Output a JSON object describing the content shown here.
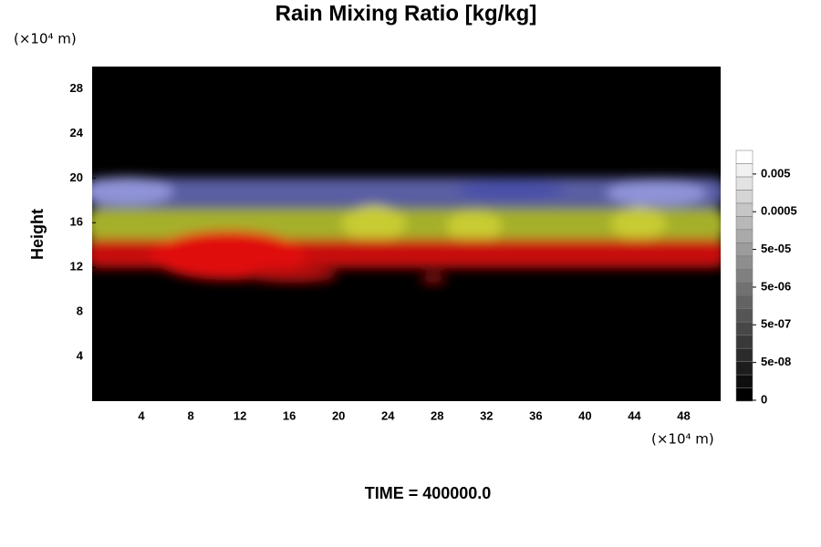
{
  "chart_data": {
    "type": "heatmap",
    "title": "Rain Mixing Ratio [kg/kg]",
    "x_label": "(×10⁴ m)",
    "y_label": "Height",
    "y_unit": "(×10⁴ m)",
    "annotation": "TIME = 400000.0",
    "xlim": [
      0,
      51
    ],
    "xticks": [
      4,
      8,
      12,
      16,
      20,
      24,
      28,
      32,
      36,
      40,
      44,
      48
    ],
    "ylim": [
      0,
      30
    ],
    "yticks": [
      4,
      8,
      12,
      16,
      20,
      24,
      28
    ],
    "colorbar_ticks": [
      0,
      {
        "value": 5e-08,
        "label": "5e-08"
      },
      {
        "value": 5e-07,
        "label": "5e-07"
      },
      {
        "value": 5e-06,
        "label": "5e-06"
      },
      {
        "value": 5e-05,
        "label": "5e-05"
      },
      0.0005,
      0.005
    ]
  }
}
